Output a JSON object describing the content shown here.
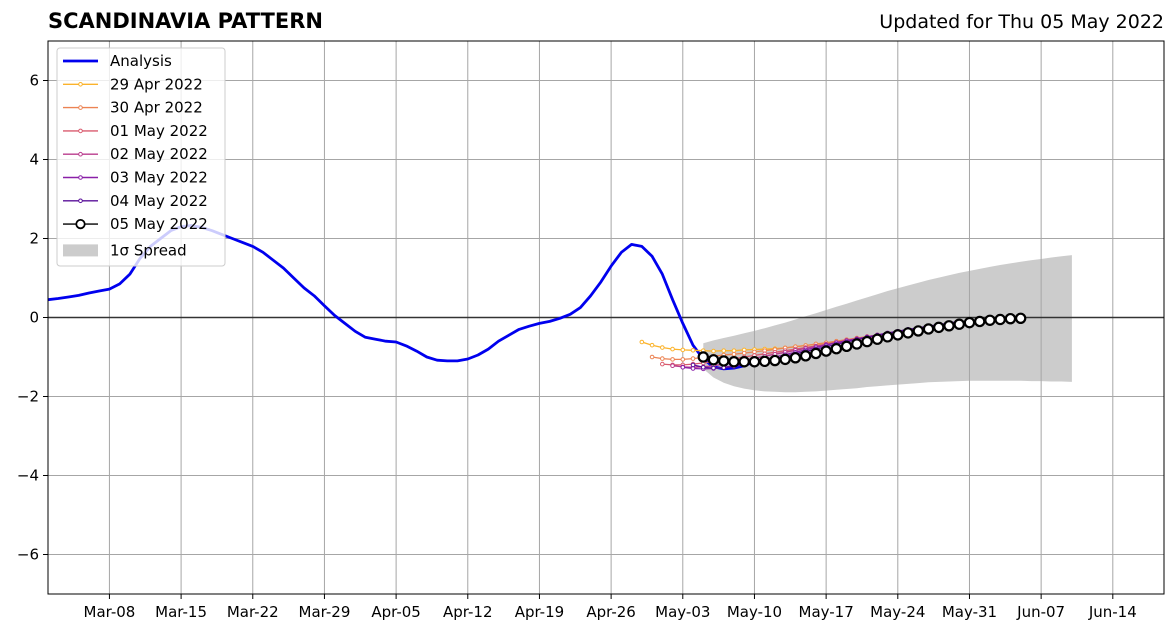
{
  "header": {
    "title": "SCANDINAVIA PATTERN",
    "updated": "Updated for Thu 05 May 2022"
  },
  "chart_data": {
    "type": "line",
    "title": "SCANDINAVIA PATTERN",
    "xlabel": "",
    "ylabel": "",
    "x_range": [
      "2022-03-02",
      "2022-06-19"
    ],
    "ylim": [
      -7,
      7
    ],
    "x_ticks": [
      {
        "date": "2022-03-08",
        "label": "Mar-08"
      },
      {
        "date": "2022-03-15",
        "label": "Mar-15"
      },
      {
        "date": "2022-03-22",
        "label": "Mar-22"
      },
      {
        "date": "2022-03-29",
        "label": "Mar-29"
      },
      {
        "date": "2022-04-05",
        "label": "Apr-05"
      },
      {
        "date": "2022-04-12",
        "label": "Apr-12"
      },
      {
        "date": "2022-04-19",
        "label": "Apr-19"
      },
      {
        "date": "2022-04-26",
        "label": "Apr-26"
      },
      {
        "date": "2022-05-03",
        "label": "May-03"
      },
      {
        "date": "2022-05-10",
        "label": "May-10"
      },
      {
        "date": "2022-05-17",
        "label": "May-17"
      },
      {
        "date": "2022-05-24",
        "label": "May-24"
      },
      {
        "date": "2022-05-31",
        "label": "May-31"
      },
      {
        "date": "2022-06-07",
        "label": "Jun-07"
      },
      {
        "date": "2022-06-14",
        "label": "Jun-14"
      }
    ],
    "y_ticks": [
      {
        "value": 6,
        "label": "6"
      },
      {
        "value": 4,
        "label": "4"
      },
      {
        "value": 2,
        "label": "2"
      },
      {
        "value": 0,
        "label": "0"
      },
      {
        "value": -2,
        "label": "−2"
      },
      {
        "value": -4,
        "label": "−4"
      },
      {
        "value": -6,
        "label": "−6"
      }
    ],
    "grid": true,
    "zero_line": true,
    "legend_position": "top-left",
    "legend": [
      {
        "label": "Analysis",
        "kind": "line",
        "color": "#0000ee"
      },
      {
        "label": "29 Apr 2022",
        "kind": "marker-line",
        "color": "#fbb32b"
      },
      {
        "label": "30 Apr 2022",
        "kind": "marker-line",
        "color": "#ec8353"
      },
      {
        "label": "01 May 2022",
        "kind": "marker-line",
        "color": "#d95a6e"
      },
      {
        "label": "02 May 2022",
        "kind": "marker-line",
        "color": "#b93b8d"
      },
      {
        "label": "03 May 2022",
        "kind": "marker-line",
        "color": "#8a20a8"
      },
      {
        "label": "04 May 2022",
        "kind": "marker-line",
        "color": "#5a109a"
      },
      {
        "label": "05 May 2022",
        "kind": "circle-line",
        "color": "#000000"
      },
      {
        "label": "1σ Spread",
        "kind": "patch",
        "color": "#cccccc"
      }
    ],
    "analysis": {
      "name": "Analysis",
      "color": "#0000ee",
      "start_date": "2022-03-02",
      "step_days": 1,
      "values": [
        0.45,
        0.48,
        0.52,
        0.56,
        0.62,
        0.67,
        0.72,
        0.85,
        1.1,
        1.5,
        1.8,
        2.0,
        2.2,
        2.3,
        2.33,
        2.28,
        2.2,
        2.1,
        2.0,
        1.9,
        1.8,
        1.65,
        1.45,
        1.25,
        1.0,
        0.75,
        0.55,
        0.3,
        0.05,
        -0.15,
        -0.35,
        -0.5,
        -0.55,
        -0.6,
        -0.62,
        -0.72,
        -0.85,
        -1.0,
        -1.08,
        -1.1,
        -1.1,
        -1.05,
        -0.95,
        -0.8,
        -0.6,
        -0.45,
        -0.3,
        -0.22,
        -0.15,
        -0.1,
        -0.02,
        0.08,
        0.25,
        0.55,
        0.9,
        1.3,
        1.65,
        1.85,
        1.8,
        1.55,
        1.1,
        0.45,
        -0.15,
        -0.7,
        -1.05,
        -1.25,
        -1.3,
        -1.28,
        -1.22,
        -1.12,
        -1.05
      ]
    },
    "forecasts": [
      {
        "name": "29 Apr 2022",
        "color": "#fbb32b",
        "start_date": "2022-04-29",
        "step_days": 1,
        "values": [
          -0.62,
          -0.7,
          -0.76,
          -0.8,
          -0.82,
          -0.83,
          -0.84,
          -0.85,
          -0.84,
          -0.84,
          -0.82,
          -0.81,
          -0.8,
          -0.79,
          -0.77,
          -0.74,
          -0.71,
          -0.68,
          -0.65,
          -0.62,
          -0.59,
          -0.56,
          -0.52,
          -0.49,
          -0.45,
          -0.42,
          -0.38,
          -0.34,
          -0.3,
          -0.26,
          -0.22,
          -0.18
        ]
      },
      {
        "name": "30 Apr 2022",
        "color": "#ec8353",
        "start_date": "2022-04-30",
        "step_days": 1,
        "values": [
          -1.0,
          -1.04,
          -1.06,
          -1.06,
          -1.04,
          -1.01,
          -0.98,
          -0.95,
          -0.93,
          -0.9,
          -0.87,
          -0.84,
          -0.81,
          -0.77,
          -0.74,
          -0.71,
          -0.67,
          -0.64,
          -0.6,
          -0.56,
          -0.52,
          -0.48,
          -0.44,
          -0.4,
          -0.36,
          -0.32,
          -0.28,
          -0.24,
          -0.2,
          -0.16,
          -0.12
        ]
      },
      {
        "name": "01 May 2022",
        "color": "#d95a6e",
        "start_date": "2022-05-01",
        "step_days": 1,
        "values": [
          -1.18,
          -1.2,
          -1.2,
          -1.18,
          -1.15,
          -1.12,
          -1.08,
          -1.04,
          -1.0,
          -0.96,
          -0.92,
          -0.88,
          -0.84,
          -0.8,
          -0.76,
          -0.72,
          -0.68,
          -0.64,
          -0.6,
          -0.56,
          -0.52,
          -0.48,
          -0.44,
          -0.4,
          -0.36,
          -0.32,
          -0.28,
          -0.24,
          -0.2,
          -0.16
        ]
      },
      {
        "name": "02 May 2022",
        "color": "#b93b8d",
        "start_date": "2022-05-02",
        "step_days": 1,
        "values": [
          -1.22,
          -1.25,
          -1.26,
          -1.25,
          -1.22,
          -1.18,
          -1.13,
          -1.08,
          -1.03,
          -0.98,
          -0.93,
          -0.88,
          -0.83,
          -0.78,
          -0.73,
          -0.68,
          -0.63,
          -0.58,
          -0.54,
          -0.5,
          -0.46,
          -0.42,
          -0.38,
          -0.34,
          -0.3,
          -0.26,
          -0.22,
          -0.18,
          -0.14
        ]
      },
      {
        "name": "03 May 2022",
        "color": "#8a20a8",
        "start_date": "2022-05-03",
        "step_days": 1,
        "values": [
          -1.26,
          -1.29,
          -1.3,
          -1.29,
          -1.26,
          -1.22,
          -1.17,
          -1.12,
          -1.06,
          -1.0,
          -0.94,
          -0.88,
          -0.82,
          -0.76,
          -0.7,
          -0.64,
          -0.59,
          -0.54,
          -0.49,
          -0.44,
          -0.39,
          -0.35,
          -0.31,
          -0.27,
          -0.23,
          -0.19,
          -0.15,
          -0.11
        ]
      },
      {
        "name": "04 May 2022",
        "color": "#5a109a",
        "start_date": "2022-05-04",
        "step_days": 1,
        "values": [
          -1.2,
          -1.26,
          -1.28,
          -1.27,
          -1.24,
          -1.2,
          -1.15,
          -1.1,
          -1.04,
          -0.98,
          -0.92,
          -0.86,
          -0.8,
          -0.74,
          -0.68,
          -0.62,
          -0.56,
          -0.5,
          -0.45,
          -0.4,
          -0.35,
          -0.3,
          -0.26,
          -0.22,
          -0.18,
          -0.14,
          -0.1
        ]
      },
      {
        "name": "05 May 2022",
        "color": "#000000",
        "start_date": "2022-05-05",
        "step_days": 1,
        "values": [
          -1.0,
          -1.07,
          -1.1,
          -1.12,
          -1.12,
          -1.12,
          -1.11,
          -1.09,
          -1.06,
          -1.02,
          -0.97,
          -0.91,
          -0.85,
          -0.79,
          -0.73,
          -0.67,
          -0.61,
          -0.55,
          -0.49,
          -0.44,
          -0.39,
          -0.34,
          -0.29,
          -0.25,
          -0.21,
          -0.17,
          -0.13,
          -0.1,
          -0.07,
          -0.05,
          -0.03,
          -0.02
        ]
      }
    ],
    "spread": {
      "name": "1σ Spread",
      "color": "#cccccc",
      "start_date": "2022-05-05",
      "step_days": 1,
      "upper": [
        -0.65,
        -0.58,
        -0.52,
        -0.46,
        -0.4,
        -0.34,
        -0.27,
        -0.2,
        -0.13,
        -0.05,
        0.03,
        0.11,
        0.19,
        0.27,
        0.35,
        0.43,
        0.51,
        0.59,
        0.67,
        0.74,
        0.81,
        0.88,
        0.95,
        1.01,
        1.07,
        1.13,
        1.18,
        1.23,
        1.28,
        1.33,
        1.37,
        1.41,
        1.45,
        1.48,
        1.52,
        1.55,
        1.58
      ],
      "lower": [
        -1.3,
        -1.52,
        -1.65,
        -1.74,
        -1.8,
        -1.84,
        -1.87,
        -1.88,
        -1.89,
        -1.89,
        -1.88,
        -1.87,
        -1.85,
        -1.83,
        -1.81,
        -1.79,
        -1.76,
        -1.74,
        -1.72,
        -1.7,
        -1.68,
        -1.66,
        -1.64,
        -1.63,
        -1.62,
        -1.61,
        -1.6,
        -1.6,
        -1.6,
        -1.6,
        -1.6,
        -1.6,
        -1.61,
        -1.61,
        -1.62,
        -1.62,
        -1.63
      ]
    }
  }
}
